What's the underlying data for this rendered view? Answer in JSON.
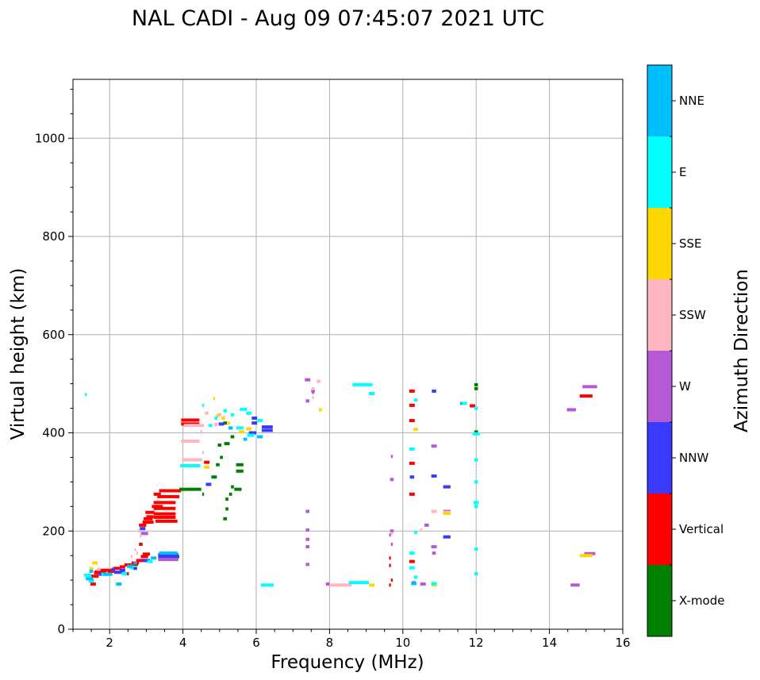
{
  "chart_data": {
    "type": "scatter",
    "title": "NAL CADI - Aug 09 07:45:07 2021 UTC",
    "xlabel": "Frequency (MHz)",
    "ylabel": "Virtual height (km)",
    "xlim": [
      1,
      16
    ],
    "ylim": [
      0,
      1120
    ],
    "xticks": [
      2,
      4,
      6,
      8,
      10,
      12,
      14,
      16
    ],
    "yticks": [
      0,
      200,
      400,
      600,
      800,
      1000
    ],
    "grid": true,
    "colorbar": {
      "label": "Azimuth Direction",
      "placement": "right",
      "entries": [
        {
          "name": "X-mode",
          "color": "#008000"
        },
        {
          "name": "Vertical",
          "color": "#ff0000"
        },
        {
          "name": "NNW",
          "color": "#3a3aff"
        },
        {
          "name": "W",
          "color": "#b559d6"
        },
        {
          "name": "SSW",
          "color": "#ffb6c1"
        },
        {
          "name": "SSE",
          "color": "#ffd700"
        },
        {
          "name": "E",
          "color": "#00ffff"
        },
        {
          "name": "NNE",
          "color": "#00bfff"
        }
      ]
    },
    "series": [
      {
        "name": "Vertical",
        "points": [
          [
            1.55,
            92,
            0.15
          ],
          [
            1.6,
            108,
            0.2
          ],
          [
            1.65,
            115,
            0.15
          ],
          [
            1.75,
            117,
            0.3
          ],
          [
            1.9,
            120,
            0.3
          ],
          [
            2.05,
            118,
            0.2
          ],
          [
            2.2,
            124,
            0.2
          ],
          [
            2.35,
            127,
            0.15
          ],
          [
            2.5,
            131,
            0.2
          ],
          [
            2.7,
            135,
            0.2
          ],
          [
            2.85,
            140,
            0.25
          ],
          [
            2.95,
            148,
            0.2
          ],
          [
            3.0,
            153,
            0.2
          ],
          [
            2.85,
            173,
            0.1
          ],
          [
            2.9,
            212,
            0.2
          ],
          [
            3.05,
            218,
            0.3
          ],
          [
            3.05,
            225,
            0.25
          ],
          [
            3.1,
            238,
            0.25
          ],
          [
            3.1,
            229,
            0.2
          ],
          [
            3.3,
            250,
            0.3
          ],
          [
            3.5,
            258,
            0.6
          ],
          [
            3.5,
            246,
            0.6
          ],
          [
            3.5,
            235,
            0.6
          ],
          [
            3.55,
            220,
            0.6
          ],
          [
            3.5,
            228,
            0.6
          ],
          [
            3.6,
            270,
            0.6
          ],
          [
            3.65,
            282,
            0.6
          ],
          [
            3.3,
            275,
            0.2
          ],
          [
            4.2,
            426,
            0.5
          ],
          [
            4.2,
            418,
            0.5
          ],
          [
            4.65,
            340,
            0.15
          ],
          [
            10.25,
            485,
            0.15
          ],
          [
            10.25,
            456,
            0.15
          ],
          [
            10.25,
            425,
            0.15
          ],
          [
            10.25,
            338,
            0.15
          ],
          [
            10.25,
            275,
            0.15
          ],
          [
            10.25,
            138,
            0.15
          ],
          [
            9.65,
            145,
            0.05
          ],
          [
            9.65,
            130,
            0.05
          ],
          [
            9.7,
            100,
            0.05
          ],
          [
            9.65,
            90,
            0.05
          ],
          [
            11.9,
            455,
            0.15
          ],
          [
            15.0,
            475,
            0.35
          ],
          [
            2.45,
            113,
            0.15
          ]
        ]
      },
      {
        "name": "X-mode",
        "points": [
          [
            4.2,
            285,
            0.6
          ],
          [
            4.85,
            310,
            0.15
          ],
          [
            4.95,
            335,
            0.1
          ],
          [
            5.05,
            350,
            0.08
          ],
          [
            5.0,
            375,
            0.1
          ],
          [
            5.2,
            378,
            0.15
          ],
          [
            5.35,
            392,
            0.1
          ],
          [
            5.15,
            420,
            0.1
          ],
          [
            5.55,
            335,
            0.2
          ],
          [
            5.55,
            322,
            0.2
          ],
          [
            5.5,
            285,
            0.2
          ],
          [
            5.35,
            290,
            0.08
          ],
          [
            5.3,
            275,
            0.08
          ],
          [
            5.2,
            265,
            0.08
          ],
          [
            5.15,
            225,
            0.1
          ],
          [
            5.2,
            245,
            0.08
          ],
          [
            4.55,
            275,
            0.05
          ],
          [
            12.0,
            490,
            0.1
          ],
          [
            12.0,
            498,
            0.1
          ],
          [
            12.0,
            402,
            0.1
          ],
          [
            2.7,
            132,
            0.15
          ],
          [
            3.8,
            148,
            0.2
          ]
        ]
      },
      {
        "name": "NNW",
        "points": [
          [
            4.7,
            295,
            0.15
          ],
          [
            5.05,
            418,
            0.15
          ],
          [
            5.9,
            400,
            0.2
          ],
          [
            6.3,
            405,
            0.3
          ],
          [
            6.3,
            412,
            0.3
          ],
          [
            5.95,
            430,
            0.15
          ],
          [
            5.95,
            420,
            0.15
          ],
          [
            10.85,
            485,
            0.12
          ],
          [
            10.85,
            312,
            0.15
          ],
          [
            10.25,
            310,
            0.12
          ],
          [
            11.2,
            290,
            0.2
          ],
          [
            11.2,
            188,
            0.2
          ],
          [
            3.6,
            145,
            0.55
          ],
          [
            3.6,
            152,
            0.55
          ],
          [
            3.6,
            148,
            0.55
          ],
          [
            2.9,
            205,
            0.15
          ],
          [
            3.0,
            140,
            0.2
          ],
          [
            2.25,
            116,
            0.25
          ],
          [
            1.8,
            112,
            0.2
          ],
          [
            2.1,
            122,
            0.1
          ],
          [
            2.35,
            120,
            0.15
          ],
          [
            2.7,
            124,
            0.1
          ]
        ]
      },
      {
        "name": "W",
        "points": [
          [
            7.4,
            508,
            0.15
          ],
          [
            7.4,
            465,
            0.1
          ],
          [
            7.4,
            240,
            0.1
          ],
          [
            7.4,
            202,
            0.1
          ],
          [
            7.4,
            183,
            0.1
          ],
          [
            7.4,
            168,
            0.1
          ],
          [
            7.4,
            132,
            0.1
          ],
          [
            7.55,
            485,
            0.1
          ],
          [
            7.55,
            482,
            0.05
          ],
          [
            9.7,
            352,
            0.05
          ],
          [
            9.7,
            305,
            0.1
          ],
          [
            9.7,
            200,
            0.1
          ],
          [
            9.65,
            192,
            0.05
          ],
          [
            9.7,
            173,
            0.05
          ],
          [
            10.85,
            373,
            0.15
          ],
          [
            10.85,
            168,
            0.15
          ],
          [
            10.85,
            155,
            0.1
          ],
          [
            10.65,
            212,
            0.12
          ],
          [
            10.55,
            92,
            0.15
          ],
          [
            14.6,
            447,
            0.25
          ],
          [
            14.7,
            90,
            0.25
          ],
          [
            15.1,
            154,
            0.3
          ],
          [
            15.1,
            494,
            0.4
          ],
          [
            11.2,
            240,
            0.2
          ],
          [
            2.95,
            195,
            0.2
          ],
          [
            2.7,
            135,
            0.1
          ],
          [
            3.6,
            142,
            0.55
          ],
          [
            10.3,
            95,
            0.1
          ],
          [
            7.95,
            92,
            0.1
          ]
        ]
      },
      {
        "name": "SSW",
        "points": [
          [
            4.2,
            383,
            0.5
          ],
          [
            4.25,
            345,
            0.55
          ],
          [
            4.3,
            415,
            0.55
          ],
          [
            7.55,
            490,
            0.08
          ],
          [
            7.55,
            472,
            0.05
          ],
          [
            7.7,
            505,
            0.1
          ],
          [
            8.3,
            90,
            0.6
          ],
          [
            10.85,
            240,
            0.15
          ],
          [
            11.2,
            238,
            0.2
          ],
          [
            10.5,
            202,
            0.05
          ],
          [
            9.7,
            195,
            0.05
          ],
          [
            2.6,
            148,
            0.05
          ],
          [
            2.75,
            155,
            0.05
          ],
          [
            2.7,
            162,
            0.05
          ],
          [
            2.85,
            190,
            0.05
          ],
          [
            2.8,
            200,
            0.05
          ],
          [
            4.55,
            360,
            0.05
          ],
          [
            4.5,
            402,
            0.05
          ],
          [
            4.65,
            440,
            0.1
          ],
          [
            1.7,
            122,
            0.1
          ],
          [
            4.9,
            417,
            0.1
          ],
          [
            5.0,
            437,
            0.1
          ]
        ]
      },
      {
        "name": "SSE",
        "points": [
          [
            1.6,
            135,
            0.15
          ],
          [
            1.5,
            100,
            0.15
          ],
          [
            4.85,
            470,
            0.05
          ],
          [
            4.95,
            435,
            0.08
          ],
          [
            5.1,
            430,
            0.1
          ],
          [
            5.25,
            420,
            0.08
          ],
          [
            5.6,
            402,
            0.15
          ],
          [
            5.8,
            408,
            0.15
          ],
          [
            7.75,
            447,
            0.08
          ],
          [
            9.15,
            90,
            0.15
          ],
          [
            10.85,
            90,
            0.15
          ],
          [
            11.2,
            236,
            0.2
          ],
          [
            10.35,
            407,
            0.12
          ],
          [
            15.0,
            150,
            0.35
          ],
          [
            4.65,
            330,
            0.15
          ],
          [
            1.5,
            123,
            0.1
          ]
        ]
      },
      {
        "name": "E",
        "points": [
          [
            1.35,
            478,
            0.05
          ],
          [
            4.2,
            333,
            0.55
          ],
          [
            4.55,
            456,
            0.05
          ],
          [
            4.75,
            415,
            0.1
          ],
          [
            4.9,
            430,
            0.08
          ],
          [
            5.15,
            445,
            0.1
          ],
          [
            5.35,
            437,
            0.1
          ],
          [
            5.65,
            448,
            0.2
          ],
          [
            5.8,
            440,
            0.15
          ],
          [
            5.55,
            410,
            0.2
          ],
          [
            5.85,
            395,
            0.2
          ],
          [
            6.1,
            425,
            0.15
          ],
          [
            8.9,
            498,
            0.55
          ],
          [
            9.15,
            480,
            0.15
          ],
          [
            8.8,
            95,
            0.55
          ],
          [
            10.25,
            367,
            0.15
          ],
          [
            10.35,
            467,
            0.1
          ],
          [
            10.25,
            155,
            0.15
          ],
          [
            10.25,
            125,
            0.15
          ],
          [
            10.35,
            197,
            0.08
          ],
          [
            10.35,
            106,
            0.1
          ],
          [
            11.7,
            460,
            0.1
          ],
          [
            12.0,
            450,
            0.1
          ],
          [
            12.0,
            345,
            0.1
          ],
          [
            12.0,
            300,
            0.1
          ],
          [
            12.0,
            258,
            0.15
          ],
          [
            12.0,
            250,
            0.1
          ],
          [
            12.0,
            163,
            0.1
          ],
          [
            12.0,
            113,
            0.1
          ],
          [
            12.0,
            398,
            0.2
          ],
          [
            6.3,
            90,
            0.35
          ],
          [
            1.4,
            110,
            0.2
          ],
          [
            1.5,
            98,
            0.15
          ],
          [
            2.4,
            113,
            0.15
          ],
          [
            3.1,
            138,
            0.15
          ],
          [
            2.6,
            125,
            0.1
          ],
          [
            1.85,
            112,
            0.15
          ],
          [
            10.85,
            93,
            0.15
          ]
        ]
      },
      {
        "name": "NNE",
        "points": [
          [
            1.45,
            103,
            0.2
          ],
          [
            1.5,
            118,
            0.1
          ],
          [
            2.25,
            92,
            0.15
          ],
          [
            1.95,
            112,
            0.25
          ],
          [
            2.55,
            128,
            0.15
          ],
          [
            3.2,
            145,
            0.15
          ],
          [
            3.6,
            155,
            0.5
          ],
          [
            5.3,
            410,
            0.12
          ],
          [
            6.1,
            392,
            0.15
          ],
          [
            5.7,
            387,
            0.1
          ],
          [
            10.3,
            93,
            0.15
          ],
          [
            11.6,
            460,
            0.08
          ]
        ]
      }
    ]
  }
}
